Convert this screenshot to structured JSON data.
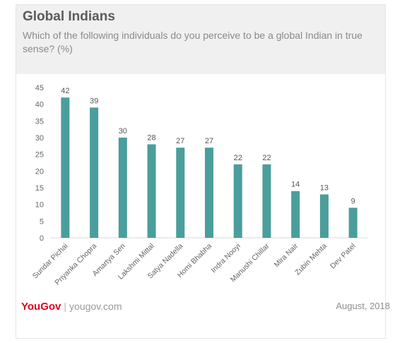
{
  "header": {
    "title": "Global Indians",
    "subtitle": "Which of the following individuals do you perceive to be a global Indian in true sense? (%)"
  },
  "chart_data": {
    "type": "bar",
    "categories": [
      "Sundar Pichai",
      "Priyanka Chopra",
      "Amartya Sen",
      "Lakshmi Mittal",
      "Satya Nadella",
      "Homi Bhabha",
      "Indra Nooyi",
      "Manushi Chillar",
      "Mira Nair",
      "Zubin Mehta",
      "Dev Patel"
    ],
    "values": [
      42,
      39,
      30,
      28,
      27,
      27,
      22,
      22,
      14,
      13,
      9
    ],
    "yticks": [
      0,
      5,
      10,
      15,
      20,
      25,
      30,
      35,
      40,
      45
    ],
    "ylim": [
      0,
      45
    ],
    "bar_color": "#4a9e9c",
    "grid": false,
    "data_labels": true
  },
  "footer": {
    "brand_logo": "YouGov",
    "separator": "|",
    "brand_url": "yougov.com",
    "date": "August, 2018"
  },
  "colors": {
    "brand_red": "#e2001a",
    "header_bg": "#f0f0f0"
  }
}
